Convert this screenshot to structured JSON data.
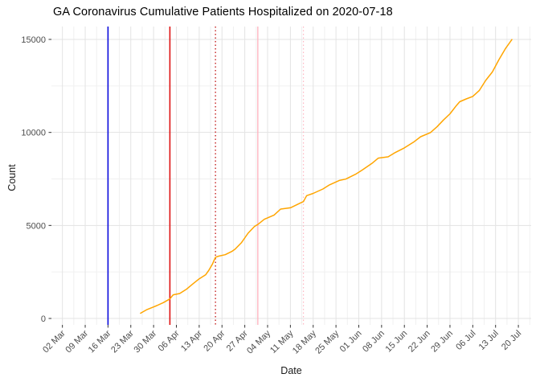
{
  "chart_data": {
    "type": "line",
    "title": "GA Coronavirus Cumulative Patients Hospitalized on 2020-07-18",
    "xlabel": "Date",
    "ylabel": "Count",
    "legend": "none",
    "grid": "major and minor, light gray on white background",
    "xlim": [
      "2020-02-27",
      "2020-07-24"
    ],
    "ylim": [
      -350,
      15700
    ],
    "x_tick_dates": [
      "2020-03-02",
      "2020-03-09",
      "2020-03-16",
      "2020-03-23",
      "2020-03-30",
      "2020-04-06",
      "2020-04-13",
      "2020-04-20",
      "2020-04-27",
      "2020-05-04",
      "2020-05-11",
      "2020-05-18",
      "2020-05-25",
      "2020-06-01",
      "2020-06-08",
      "2020-06-15",
      "2020-06-22",
      "2020-06-29",
      "2020-07-06",
      "2020-07-13",
      "2020-07-20"
    ],
    "x_tick_labels": [
      "02 Mar",
      "09 Mar",
      "16 Mar",
      "23 Mar",
      "30 Mar",
      "06 Apr",
      "13 Apr",
      "20 Apr",
      "27 Apr",
      "04 May",
      "11 May",
      "18 May",
      "25 May",
      "01 Jun",
      "08 Jun",
      "15 Jun",
      "22 Jun",
      "29 Jun",
      "06 Jul",
      "13 Jul",
      "20 Jul"
    ],
    "y_ticks": [
      0,
      5000,
      10000,
      15000
    ],
    "y_minor_ticks": [
      2500,
      7500,
      12500
    ],
    "colors": {
      "series_line": "#FFA500",
      "event_blue": "#0A0ADD",
      "event_red": "#DD1111",
      "event_red_dotted": "#C42222",
      "event_pink": "#FFB6C1",
      "grid_major": "#E3E3E3",
      "grid_minor": "#F0F0F0",
      "axis_text": "#4D4D4D",
      "axis_tick": "#333333"
    },
    "event_vlines": [
      {
        "date": "2020-03-16",
        "color": "#0A0ADD",
        "style": "solid",
        "width": 1.6
      },
      {
        "date": "2020-04-04",
        "color": "#DD1111",
        "style": "solid",
        "width": 1.6
      },
      {
        "date": "2020-04-18",
        "color": "#C42222",
        "style": "dotted",
        "width": 1.4
      },
      {
        "date": "2020-05-01",
        "color": "#FFB6C1",
        "style": "solid",
        "width": 1.4
      },
      {
        "date": "2020-05-15",
        "color": "#FFB6C1",
        "style": "dotted",
        "width": 1.2
      }
    ],
    "series": [
      {
        "name": "cumulative-patients-hospitalized",
        "color": "#FFA500",
        "points": [
          [
            "2020-03-26",
            280
          ],
          [
            "2020-03-28",
            480
          ],
          [
            "2020-03-30",
            620
          ],
          [
            "2020-03-31",
            690
          ],
          [
            "2020-04-02",
            850
          ],
          [
            "2020-04-04",
            1050
          ],
          [
            "2020-04-05",
            1270
          ],
          [
            "2020-04-07",
            1340
          ],
          [
            "2020-04-09",
            1560
          ],
          [
            "2020-04-11",
            1850
          ],
          [
            "2020-04-13",
            2130
          ],
          [
            "2020-04-15",
            2350
          ],
          [
            "2020-04-16",
            2600
          ],
          [
            "2020-04-17",
            2900
          ],
          [
            "2020-04-18",
            3290
          ],
          [
            "2020-04-19",
            3350
          ],
          [
            "2020-04-21",
            3430
          ],
          [
            "2020-04-23",
            3600
          ],
          [
            "2020-04-24",
            3720
          ],
          [
            "2020-04-26",
            4080
          ],
          [
            "2020-04-28",
            4580
          ],
          [
            "2020-04-30",
            4950
          ],
          [
            "2020-05-01",
            5050
          ],
          [
            "2020-05-03",
            5330
          ],
          [
            "2020-05-06",
            5560
          ],
          [
            "2020-05-08",
            5880
          ],
          [
            "2020-05-11",
            5950
          ],
          [
            "2020-05-14",
            6200
          ],
          [
            "2020-05-15",
            6280
          ],
          [
            "2020-05-16",
            6600
          ],
          [
            "2020-05-18",
            6720
          ],
          [
            "2020-05-21",
            6960
          ],
          [
            "2020-05-23",
            7180
          ],
          [
            "2020-05-26",
            7420
          ],
          [
            "2020-05-28",
            7490
          ],
          [
            "2020-05-31",
            7750
          ],
          [
            "2020-06-02",
            7970
          ],
          [
            "2020-06-05",
            8330
          ],
          [
            "2020-06-07",
            8620
          ],
          [
            "2020-06-10",
            8690
          ],
          [
            "2020-06-12",
            8900
          ],
          [
            "2020-06-15",
            9170
          ],
          [
            "2020-06-18",
            9500
          ],
          [
            "2020-06-20",
            9770
          ],
          [
            "2020-06-23",
            9990
          ],
          [
            "2020-06-25",
            10300
          ],
          [
            "2020-06-27",
            10670
          ],
          [
            "2020-06-29",
            11000
          ],
          [
            "2020-07-01",
            11450
          ],
          [
            "2020-07-02",
            11650
          ],
          [
            "2020-07-04",
            11800
          ],
          [
            "2020-07-06",
            11935
          ],
          [
            "2020-07-08",
            12250
          ],
          [
            "2020-07-10",
            12800
          ],
          [
            "2020-07-12",
            13250
          ],
          [
            "2020-07-14",
            13900
          ],
          [
            "2020-07-16",
            14500
          ],
          [
            "2020-07-18",
            14990
          ]
        ]
      }
    ]
  }
}
